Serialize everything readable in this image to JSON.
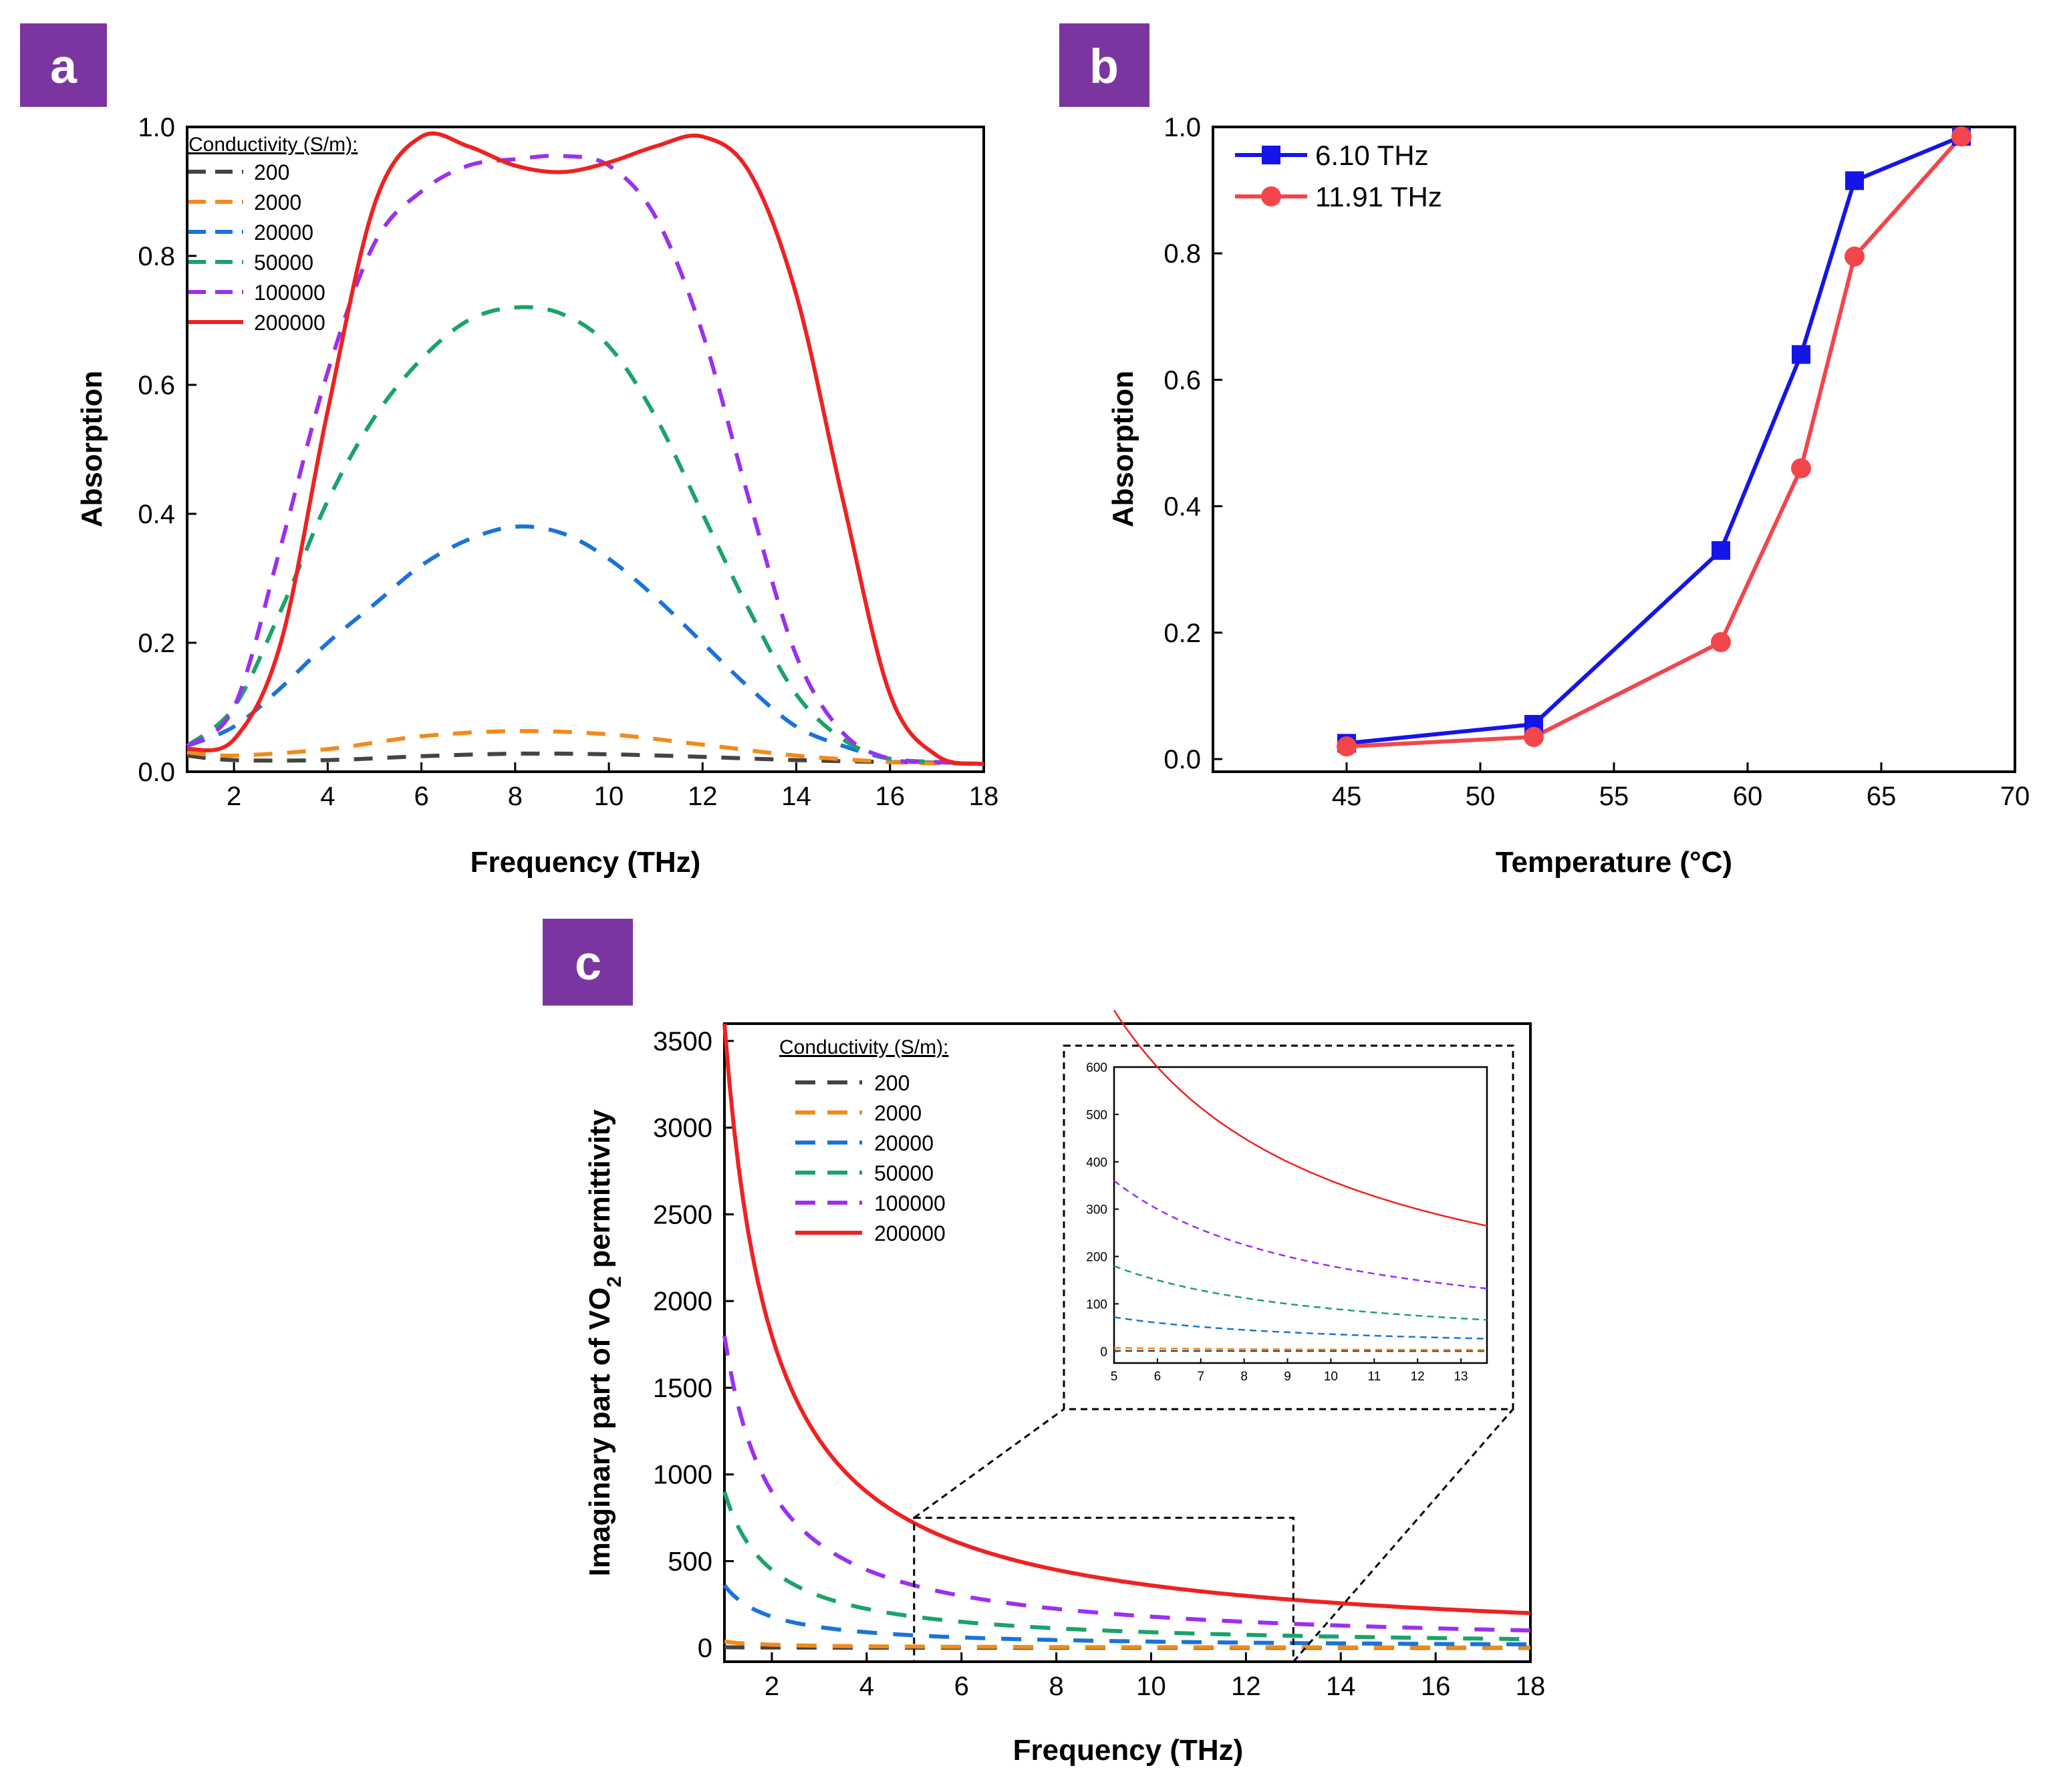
{
  "colors": {
    "badge": "#7B35A0",
    "s200": "#444444",
    "s2000": "#F28A1C",
    "s20000": "#1A73D9",
    "s50000": "#1AA36A",
    "s100000": "#9B30F0",
    "s200000": "#EE2222",
    "blue": "#1515E8",
    "red": "#F2464B"
  },
  "panels": {
    "a": {
      "label": "a"
    },
    "b": {
      "label": "b"
    },
    "c": {
      "label": "c"
    }
  },
  "chart_data": [
    {
      "id": "a",
      "type": "line",
      "xlabel": "Frequency (THz)",
      "ylabel": "Absorption",
      "xlim": [
        1,
        18
      ],
      "ylim": [
        0,
        1.0
      ],
      "xticks": [
        2,
        4,
        6,
        8,
        10,
        12,
        14,
        16,
        18
      ],
      "yticks": [
        "0.0",
        "0.2",
        "0.4",
        "0.6",
        "0.8",
        "1.0"
      ],
      "legend_title": "Conductivity (S/m):",
      "legend_position": "top-left",
      "series": [
        {
          "name": "200",
          "color": "#444444",
          "dash": true,
          "x": [
            1,
            2,
            4,
            6,
            8,
            10,
            12,
            14,
            16,
            17,
            18
          ],
          "y": [
            0.025,
            0.018,
            0.018,
            0.024,
            0.028,
            0.027,
            0.023,
            0.018,
            0.015,
            0.014,
            0.012
          ]
        },
        {
          "name": "2000",
          "color": "#F28A1C",
          "dash": true,
          "x": [
            1,
            2,
            4,
            6,
            8,
            10,
            12,
            14,
            16,
            17,
            18
          ],
          "y": [
            0.03,
            0.025,
            0.035,
            0.055,
            0.063,
            0.058,
            0.042,
            0.025,
            0.015,
            0.013,
            0.012
          ]
        },
        {
          "name": "20000",
          "color": "#1A73D9",
          "dash": true,
          "x": [
            1,
            2,
            3,
            4,
            5,
            6,
            7,
            8,
            9,
            10,
            11,
            12,
            13,
            14,
            15,
            16,
            17,
            18
          ],
          "y": [
            0.04,
            0.07,
            0.13,
            0.2,
            0.26,
            0.32,
            0.36,
            0.38,
            0.37,
            0.33,
            0.27,
            0.2,
            0.13,
            0.07,
            0.04,
            0.02,
            0.015,
            0.012
          ]
        },
        {
          "name": "50000",
          "color": "#1AA36A",
          "dash": true,
          "x": [
            1,
            2,
            3,
            4,
            5,
            6,
            7,
            8,
            9,
            10,
            11,
            12,
            13,
            14,
            15,
            16,
            17,
            18
          ],
          "y": [
            0.04,
            0.1,
            0.25,
            0.42,
            0.55,
            0.64,
            0.7,
            0.72,
            0.71,
            0.66,
            0.55,
            0.4,
            0.25,
            0.12,
            0.05,
            0.02,
            0.015,
            0.012
          ]
        },
        {
          "name": "100000",
          "color": "#9B30F0",
          "dash": true,
          "x": [
            1,
            2,
            3,
            4,
            5,
            6,
            7,
            8,
            9,
            10,
            11,
            12,
            13,
            14,
            15,
            16,
            17,
            18
          ],
          "y": [
            0.04,
            0.1,
            0.35,
            0.62,
            0.82,
            0.9,
            0.94,
            0.95,
            0.955,
            0.94,
            0.86,
            0.68,
            0.42,
            0.18,
            0.06,
            0.02,
            0.015,
            0.012
          ]
        },
        {
          "name": "200000",
          "color": "#EE2222",
          "dash": false,
          "x": [
            1,
            2,
            3,
            4,
            5,
            6,
            7,
            8,
            9,
            10,
            11,
            12,
            13,
            14,
            15,
            16,
            17,
            18
          ],
          "y": [
            0.035,
            0.05,
            0.2,
            0.56,
            0.88,
            0.985,
            0.97,
            0.94,
            0.93,
            0.945,
            0.97,
            0.985,
            0.93,
            0.74,
            0.42,
            0.12,
            0.025,
            0.012
          ]
        }
      ]
    },
    {
      "id": "b",
      "type": "line",
      "xlabel": "Temperature (°C)",
      "ylabel": "Absorption",
      "xlim": [
        40,
        70
      ],
      "ylim": [
        -0.02,
        1.0
      ],
      "xticks": [
        45,
        50,
        55,
        60,
        65,
        70
      ],
      "yticks": [
        "0.0",
        "0.2",
        "0.4",
        "0.6",
        "0.8",
        "1.0"
      ],
      "legend_position": "top-left",
      "series": [
        {
          "name": "6.10 THz",
          "color": "#1515E8",
          "marker": "square",
          "x": [
            45,
            52,
            59,
            62,
            64,
            68
          ],
          "y": [
            0.025,
            0.055,
            0.33,
            0.64,
            0.915,
            0.985
          ]
        },
        {
          "name": "11.91 THz",
          "color": "#F2464B",
          "marker": "circle",
          "x": [
            45,
            52,
            59,
            62,
            64,
            68
          ],
          "y": [
            0.02,
            0.035,
            0.185,
            0.46,
            0.795,
            0.985
          ]
        }
      ]
    },
    {
      "id": "c",
      "type": "line",
      "xlabel": "Frequency (THz)",
      "ylabel": "Imaginary part of VO",
      "ylabel_sub": "2",
      "ylabel_tail": " permittivity",
      "xlim": [
        1,
        18
      ],
      "ylim": [
        -80,
        3600
      ],
      "xticks": [
        2,
        4,
        6,
        8,
        10,
        12,
        14,
        16,
        18
      ],
      "yticks": [
        0,
        500,
        1000,
        1500,
        2000,
        2500,
        3000,
        3500
      ],
      "legend_title": "Conductivity (S/m):",
      "legend_position": "top-left",
      "model": "value = K / frequency",
      "series": [
        {
          "name": "200",
          "color": "#444444",
          "dash": true,
          "K": 3.6
        },
        {
          "name": "2000",
          "color": "#F28A1C",
          "dash": true,
          "K": 36
        },
        {
          "name": "20000",
          "color": "#1A73D9",
          "dash": true,
          "K": 360
        },
        {
          "name": "50000",
          "color": "#1AA36A",
          "dash": true,
          "K": 900
        },
        {
          "name": "100000",
          "color": "#9B30F0",
          "dash": true,
          "K": 1800
        },
        {
          "name": "200000",
          "color": "#EE2222",
          "dash": false,
          "K": 3600
        }
      ],
      "inset": {
        "xlim": [
          5,
          13.6
        ],
        "ylim": [
          -25,
          600
        ],
        "xticks": [
          5,
          6,
          7,
          8,
          9,
          10,
          11,
          12,
          13
        ],
        "yticks": [
          0,
          100,
          200,
          300,
          400,
          500,
          600
        ],
        "zoom_region": {
          "x": [
            5,
            13
          ],
          "y": [
            -80,
            750
          ]
        }
      }
    }
  ]
}
